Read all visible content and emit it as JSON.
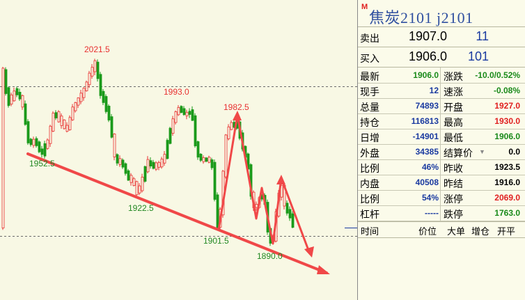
{
  "chart": {
    "labels": {
      "high_2021_5": "2021.5",
      "high_1993_0": "1993.0",
      "high_1982_5": "1982.5",
      "low_1952_5": "1952.5",
      "low_1922_5": "1922.5",
      "low_1901_5": "1901.5",
      "low_1890_0": "1890.0"
    },
    "colors": {
      "up": "#e83030",
      "down": "#1a9a1a",
      "trend": "#f04848",
      "grid": "#6a6a6a",
      "background": "#f8f8e4"
    }
  },
  "quote": {
    "title_icon": "M",
    "title": "焦炭2101  j2101",
    "sell_label": "卖出",
    "sell_price": "1907.0",
    "sell_volume": "11",
    "buy_label": "买入",
    "buy_price": "1906.0",
    "buy_volume": "101",
    "stats": [
      {
        "l1": "最新",
        "v1": "1906.0",
        "c1": "c-green",
        "l2": "涨跌",
        "v2": "-10.0/0.52%",
        "c2": "c-green"
      },
      {
        "l1": "现手",
        "v1": "12",
        "c1": "c-blue",
        "l2": "速涨",
        "v2": "-0.08%",
        "c2": "c-green"
      },
      {
        "l1": "总量",
        "v1": "74893",
        "c1": "c-blue",
        "l2": "开盘",
        "v2": "1927.0",
        "c2": "c-red"
      },
      {
        "l1": "持仓",
        "v1": "116813",
        "c1": "c-blue",
        "l2": "最高",
        "v2": "1930.0",
        "c2": "c-red"
      },
      {
        "l1": "日增",
        "v1": "-14901",
        "c1": "c-blue",
        "l2": "最低",
        "v2": "1906.0",
        "c2": "c-green"
      },
      {
        "l1": "外盘",
        "v1": "34385",
        "c1": "c-blue",
        "l2": "结算价",
        "v2": "0.0",
        "c2": "c-black"
      },
      {
        "l1": "比例",
        "v1": "46%",
        "c1": "c-blue",
        "l2": "昨收",
        "v2": "1923.5",
        "c2": "c-black"
      },
      {
        "l1": "内盘",
        "v1": "40508",
        "c1": "c-blue",
        "l2": "昨结",
        "v2": "1916.0",
        "c2": "c-black"
      },
      {
        "l1": "比例",
        "v1": "54%",
        "c1": "c-blue",
        "l2": "涨停",
        "v2": "2069.0",
        "c2": "c-red"
      },
      {
        "l1": "杠杆",
        "v1": "-----",
        "c1": "c-blue",
        "l2": "跌停",
        "v2": "1763.0",
        "c2": "c-green"
      }
    ],
    "tick_headers": {
      "time": "时间",
      "price": "价位",
      "big_order": "大单",
      "oi_change": "增仓",
      "open_close": "开平"
    }
  }
}
